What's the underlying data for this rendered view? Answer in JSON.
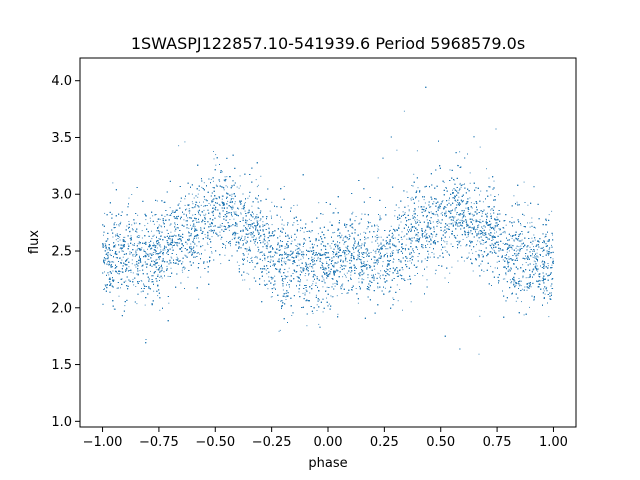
{
  "chart_data": {
    "type": "scatter",
    "title": "1SWASPJ122857.10-541939.6 Period 5968579.0s",
    "xlabel": "phase",
    "ylabel": "flux",
    "xlim": [
      -1.1,
      1.1
    ],
    "ylim": [
      0.95,
      4.2
    ],
    "x_ticks": [
      -1.0,
      -0.75,
      -0.5,
      -0.25,
      0.0,
      0.25,
      0.5,
      0.75,
      1.0
    ],
    "x_tick_labels": [
      "−1.00",
      "−0.75",
      "−0.50",
      "−0.25",
      "0.00",
      "0.25",
      "0.50",
      "0.75",
      "1.00"
    ],
    "y_ticks": [
      1.0,
      1.5,
      2.0,
      2.5,
      3.0,
      3.5,
      4.0
    ],
    "y_tick_labels": [
      "1.0",
      "1.5",
      "2.0",
      "2.5",
      "3.0",
      "3.5",
      "4.0"
    ],
    "grid": false,
    "point_color": "#1f77b4",
    "series": [
      {
        "x": [
          -1.0,
          -0.98,
          -0.95,
          -0.92,
          -0.9,
          -0.87,
          -0.85,
          -0.82,
          -0.8,
          -0.77,
          -0.75,
          -0.72,
          -0.7,
          -0.67,
          -0.65,
          -0.62,
          -0.6,
          -0.57,
          -0.55,
          -0.52,
          -0.5,
          -0.47,
          -0.45,
          -0.42,
          -0.4,
          -0.37,
          -0.35,
          -0.32,
          -0.3,
          -0.27,
          -0.25,
          -0.22,
          -0.2,
          -0.17,
          -0.15,
          -0.12,
          -0.1,
          -0.07,
          -0.05,
          -0.02,
          0.0,
          0.02,
          0.05,
          0.07,
          0.1,
          0.12,
          0.15,
          0.17,
          0.2,
          0.22,
          0.25,
          0.27,
          0.3,
          0.32,
          0.35,
          0.37,
          0.4,
          0.42,
          0.45,
          0.47,
          0.5,
          0.52,
          0.55,
          0.57,
          0.6,
          0.62,
          0.65,
          0.67,
          0.7,
          0.72,
          0.75,
          0.77,
          0.8,
          0.82,
          0.85,
          0.87,
          0.9,
          0.92,
          0.95,
          0.97,
          1.0
        ],
        "y": [
          2.42,
          2.45,
          2.45,
          2.44,
          2.46,
          2.47,
          2.47,
          2.44,
          2.42,
          2.47,
          2.52,
          2.53,
          2.55,
          2.6,
          2.65,
          2.7,
          2.72,
          2.75,
          2.78,
          2.76,
          2.88,
          2.87,
          2.84,
          2.8,
          2.72,
          2.7,
          2.68,
          2.66,
          2.6,
          2.55,
          2.5,
          2.45,
          2.4,
          2.4,
          2.42,
          2.4,
          2.37,
          2.38,
          2.37,
          2.4,
          2.42,
          2.42,
          2.43,
          2.43,
          2.45,
          2.45,
          2.45,
          2.44,
          2.43,
          2.44,
          2.45,
          2.45,
          2.52,
          2.52,
          2.58,
          2.62,
          2.66,
          2.7,
          2.72,
          2.75,
          2.78,
          2.76,
          2.88,
          2.87,
          2.84,
          2.8,
          2.72,
          2.7,
          2.68,
          2.66,
          2.6,
          2.55,
          2.5,
          2.45,
          2.4,
          2.4,
          2.42,
          2.4,
          2.37,
          2.38,
          2.37
        ]
      }
    ]
  }
}
